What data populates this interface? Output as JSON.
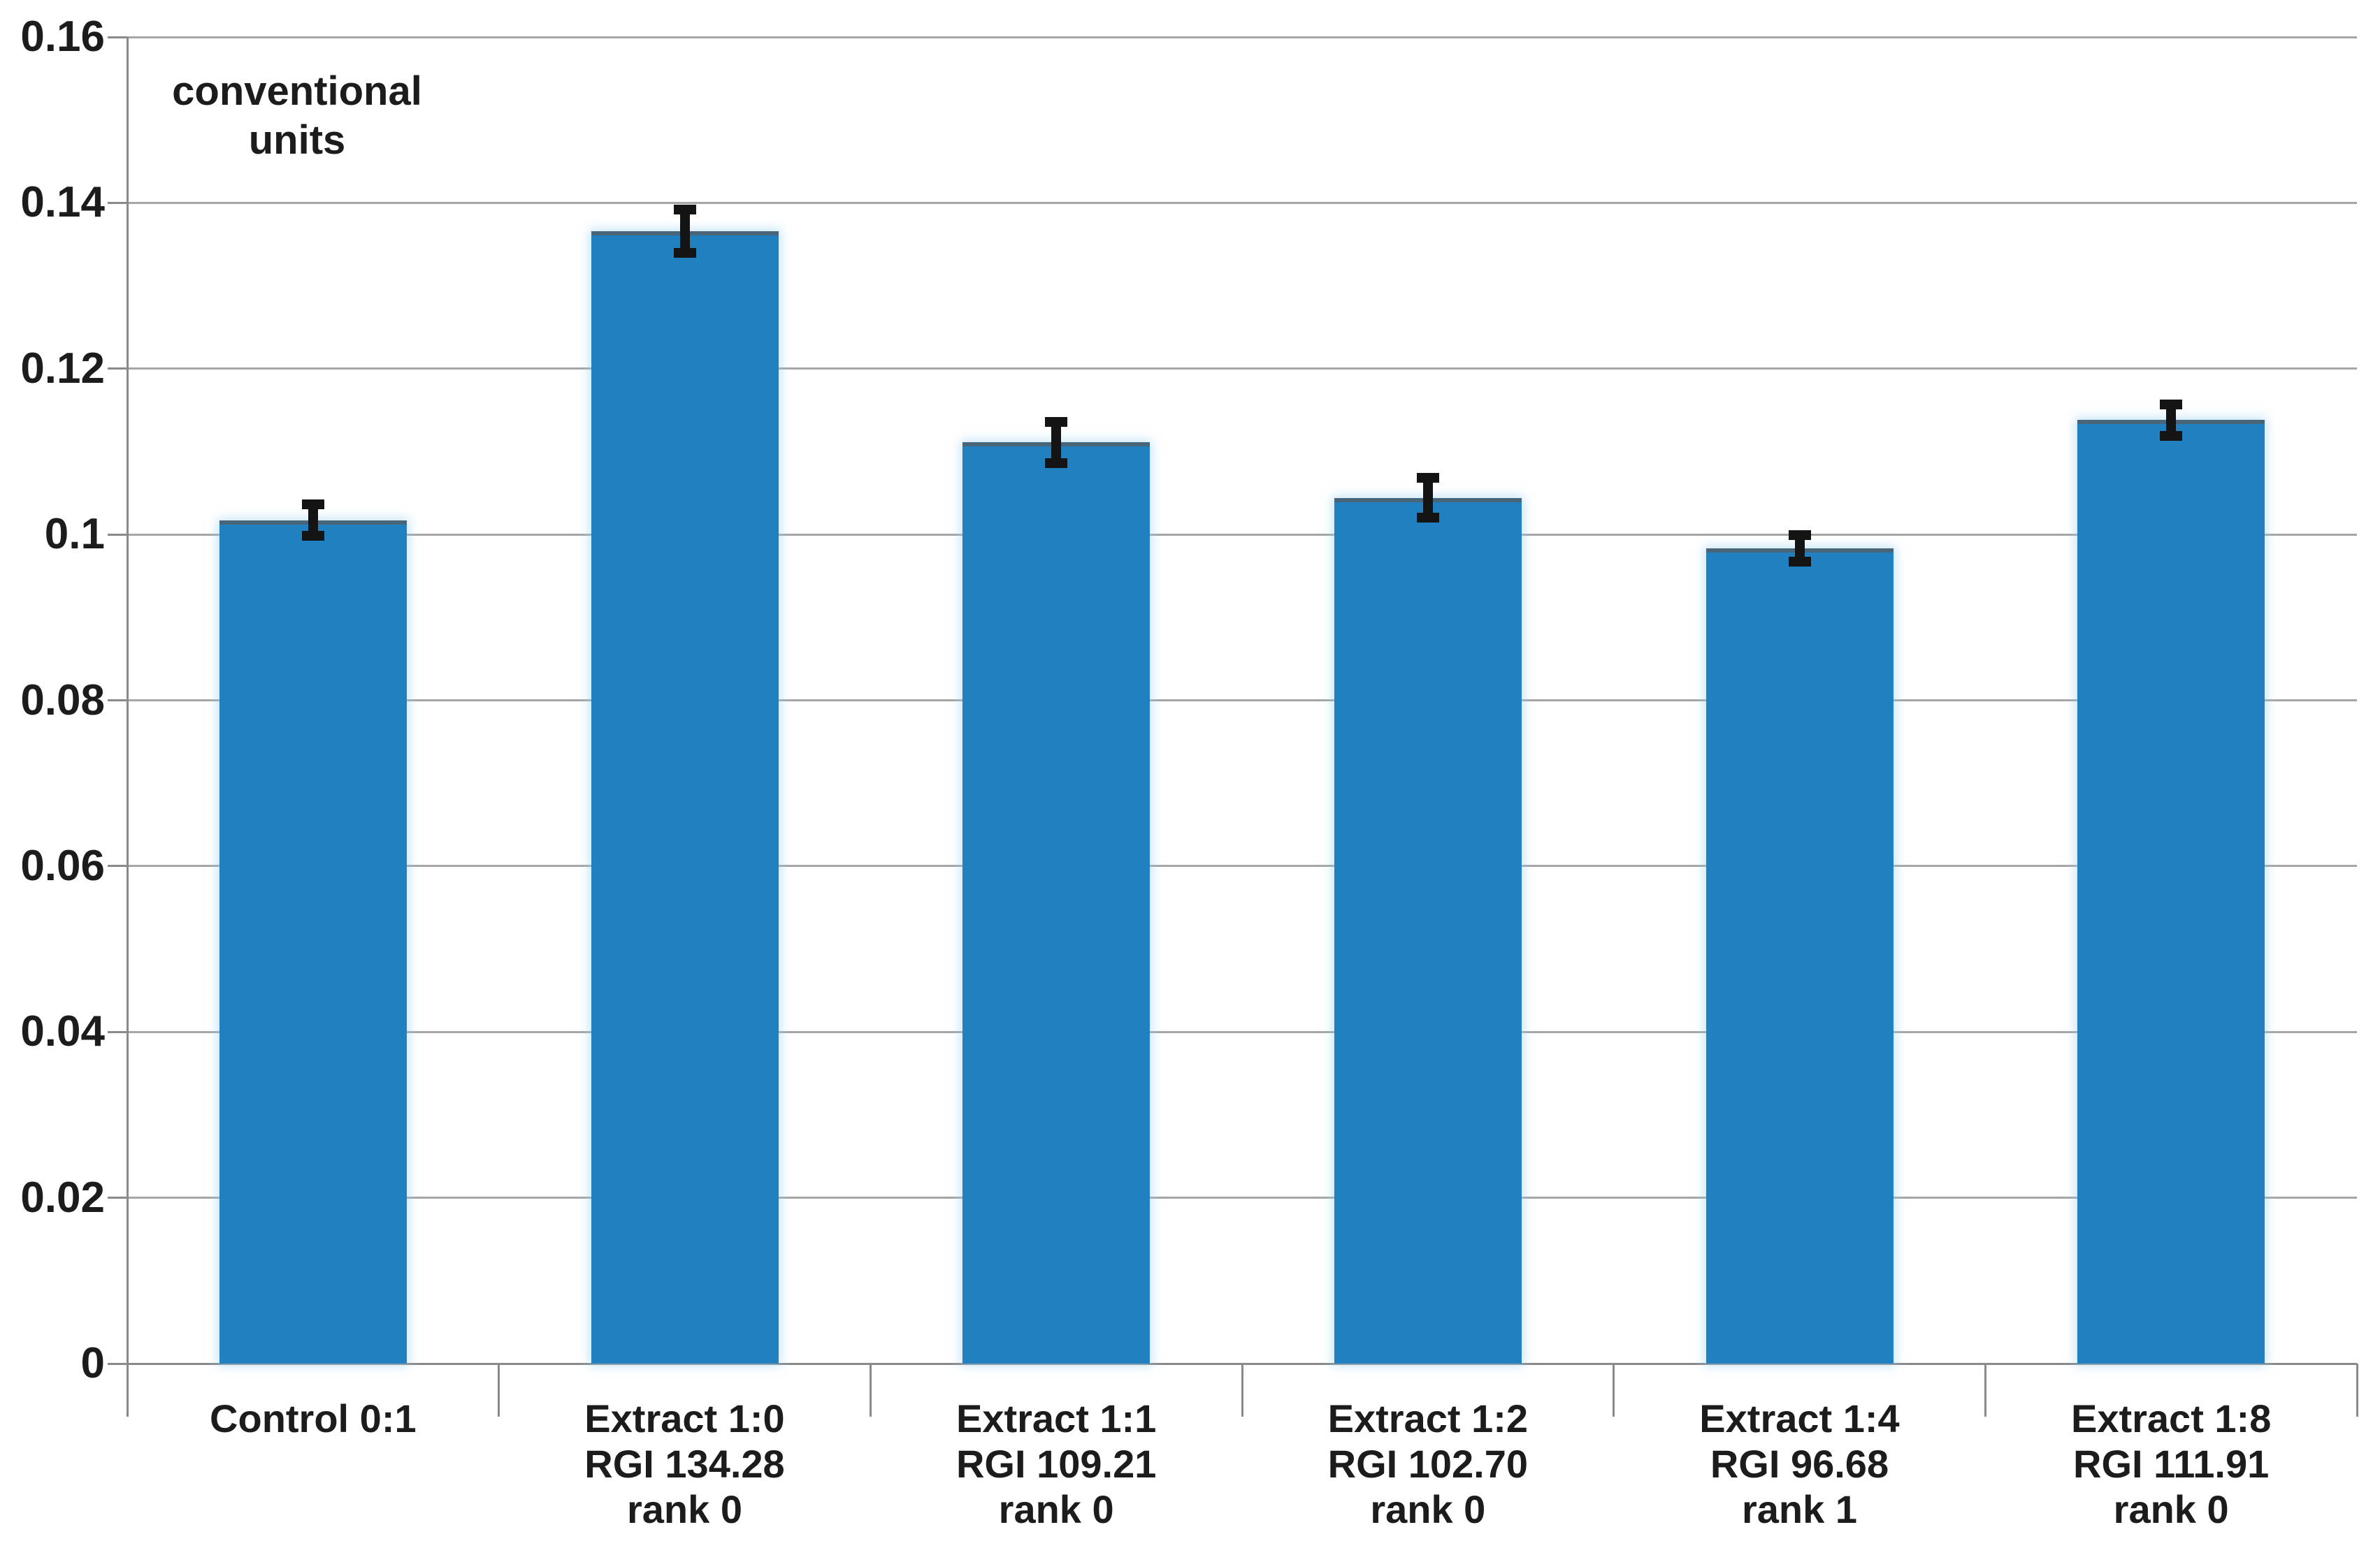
{
  "chart_data": {
    "type": "bar",
    "title_lines": [
      "conventional",
      "units"
    ],
    "ylabel": "conventional units",
    "xlabel": "",
    "ylim": [
      0,
      0.16
    ],
    "grid": true,
    "legend": "none",
    "y_ticks": [
      {
        "value": 0.16,
        "label": "0.16"
      },
      {
        "value": 0.14,
        "label": "0.14"
      },
      {
        "value": 0.12,
        "label": "0.12"
      },
      {
        "value": 0.1,
        "label": "0.1"
      },
      {
        "value": 0.08,
        "label": "0.08"
      },
      {
        "value": 0.06,
        "label": "0.06"
      },
      {
        "value": 0.04,
        "label": "0.04"
      },
      {
        "value": 0.02,
        "label": "0.02"
      },
      {
        "value": 0.0,
        "label": "0"
      }
    ],
    "categories": [
      {
        "lines": [
          "Control 0:1"
        ]
      },
      {
        "lines": [
          "Extract 1:0",
          "RGI 134.28",
          "rank 0"
        ]
      },
      {
        "lines": [
          "Extract 1:1",
          "RGI 109.21",
          "rank 0"
        ]
      },
      {
        "lines": [
          "Extract 1:2",
          "RGI 102.70",
          "rank 0"
        ]
      },
      {
        "lines": [
          "Extract 1:4",
          "RGI 96.68",
          "rank 1"
        ]
      },
      {
        "lines": [
          "Extract 1:8",
          "RGI 111.91",
          "rank 0"
        ]
      }
    ],
    "series": [
      {
        "name": "conventional units",
        "values": [
          0.1017,
          0.1366,
          0.1111,
          0.1044,
          0.0983,
          0.1138
        ],
        "errors": [
          0.0019,
          0.0026,
          0.0025,
          0.0024,
          0.0016,
          0.0019
        ]
      }
    ],
    "rgi_values": [
      null,
      134.28,
      109.21,
      102.7,
      96.68,
      111.91
    ],
    "ranks": [
      null,
      0,
      0,
      0,
      1,
      0
    ],
    "colors": {
      "bar": "#2181c0",
      "bar_top_edge": "#5a6a74",
      "gridline": "#a6a6a6",
      "axis": "#8a8a8a",
      "error_bar": "#141414",
      "text": "#1c1c1c",
      "background": "#ffffff"
    }
  }
}
